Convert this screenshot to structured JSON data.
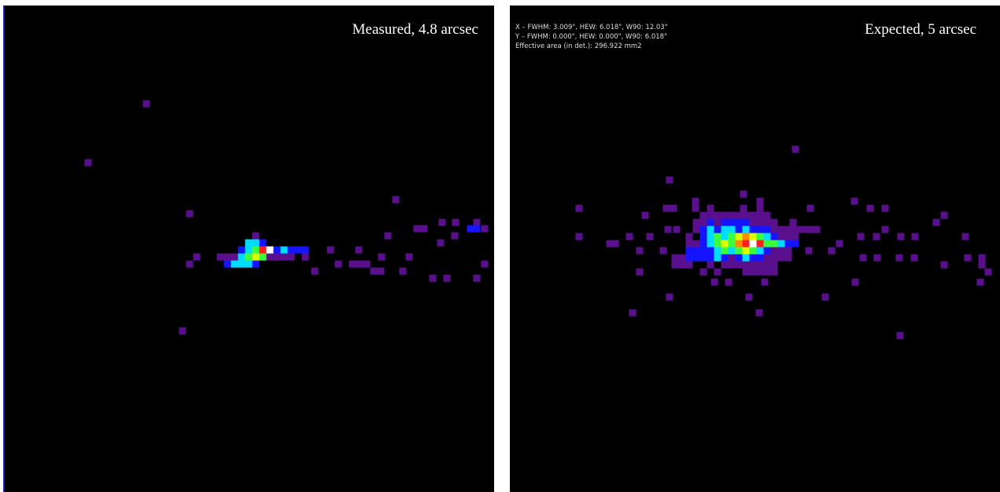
{
  "panels": [
    {
      "label": "Measured, 4.8 arcsec"
    },
    {
      "label": "Expected, 5 arcsec",
      "stats": [
        "X – FWHM: 3.009\", HEW: 6.018\", W90: 12.03\"",
        "Y – FWHM: 0.000\", HEW: 0.000\", W90: 6.018\"",
        "Effective area (in det.): 296.922 mm2"
      ]
    }
  ]
}
